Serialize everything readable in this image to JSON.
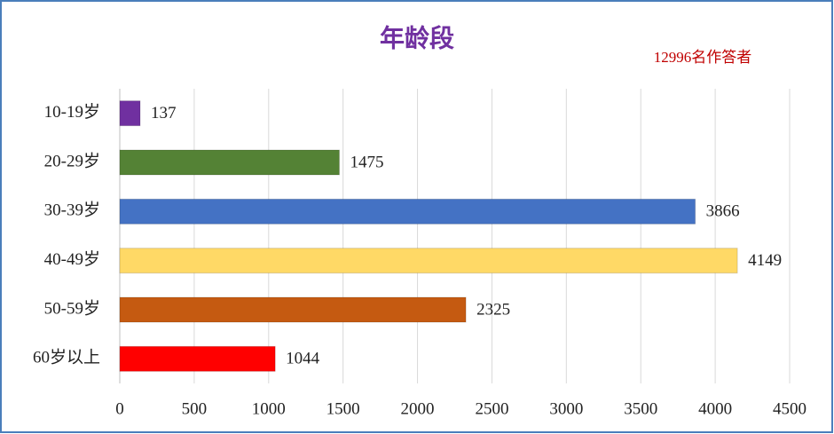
{
  "chart_data": {
    "type": "bar",
    "orientation": "horizontal",
    "title": "年龄段",
    "annotation": "12996名作答者",
    "categories": [
      "10-19岁",
      "20-29岁",
      "30-39岁",
      "40-49岁",
      "50-59岁",
      "60岁以上"
    ],
    "values": [
      137,
      1475,
      3866,
      4149,
      2325,
      1044
    ],
    "colors": [
      "#7030a0",
      "#548235",
      "#4472c4",
      "#ffd966",
      "#c55a11",
      "#ff0000"
    ],
    "xlim": [
      0,
      4500
    ],
    "xticks": [
      0,
      500,
      1000,
      1500,
      2000,
      2500,
      3000,
      3500,
      4000,
      4500
    ],
    "grid": true
  }
}
